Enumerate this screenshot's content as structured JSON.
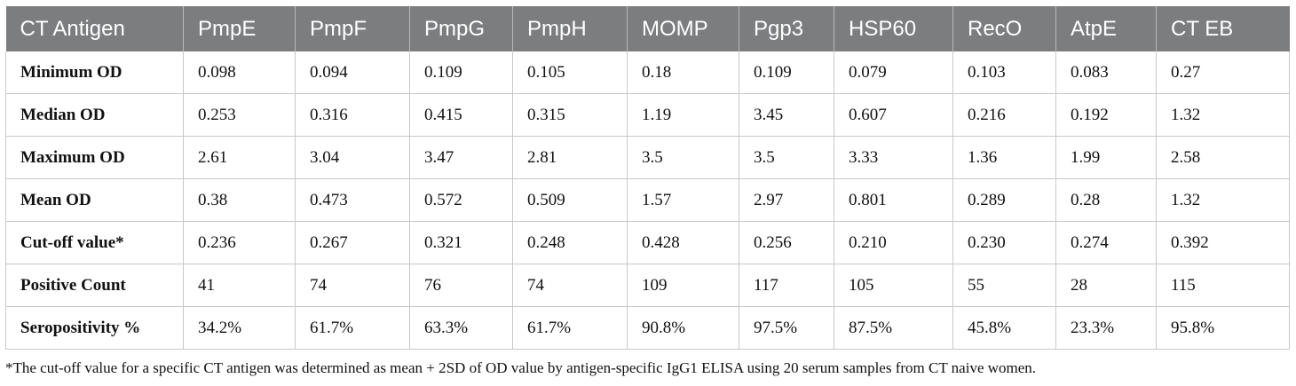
{
  "table": {
    "headers": [
      "CT Antigen",
      "PmpE",
      "PmpF",
      "PmpG",
      "PmpH",
      "MOMP",
      "Pgp3",
      "HSP60",
      "RecO",
      "AtpE",
      "CT EB"
    ],
    "rows": [
      {
        "label": "Minimum OD",
        "cells": [
          "0.098",
          "0.094",
          "0.109",
          "0.105",
          "0.18",
          "0.109",
          "0.079",
          "0.103",
          "0.083",
          "0.27"
        ]
      },
      {
        "label": "Median OD",
        "cells": [
          "0.253",
          "0.316",
          "0.415",
          "0.315",
          "1.19",
          "3.45",
          "0.607",
          "0.216",
          "0.192",
          "1.32"
        ]
      },
      {
        "label": "Maximum OD",
        "cells": [
          "2.61",
          "3.04",
          "3.47",
          "2.81",
          "3.5",
          "3.5",
          "3.33",
          "1.36",
          "1.99",
          "2.58"
        ]
      },
      {
        "label": "Mean OD",
        "cells": [
          "0.38",
          "0.473",
          "0.572",
          "0.509",
          "1.57",
          "2.97",
          "0.801",
          "0.289",
          "0.28",
          "1.32"
        ]
      },
      {
        "label": "Cut-off value*",
        "cells": [
          "0.236",
          "0.267",
          "0.321",
          "0.248",
          "0.428",
          "0.256",
          "0.210",
          "0.230",
          "0.274",
          "0.392"
        ]
      },
      {
        "label": "Positive Count",
        "cells": [
          "41",
          "74",
          "76",
          "74",
          "109",
          "117",
          "105",
          "55",
          "28",
          "115"
        ]
      },
      {
        "label": "Seropositivity %",
        "cells": [
          "34.2%",
          "61.7%",
          "63.3%",
          "61.7%",
          "90.8%",
          "97.5%",
          "87.5%",
          "45.8%",
          "23.3%",
          "95.8%"
        ]
      }
    ]
  },
  "footnote": "*The cut-off value for a specific CT antigen was determined as mean + 2SD of OD value by antigen-specific IgG1 ELISA using 20 serum samples from CT naive women."
}
